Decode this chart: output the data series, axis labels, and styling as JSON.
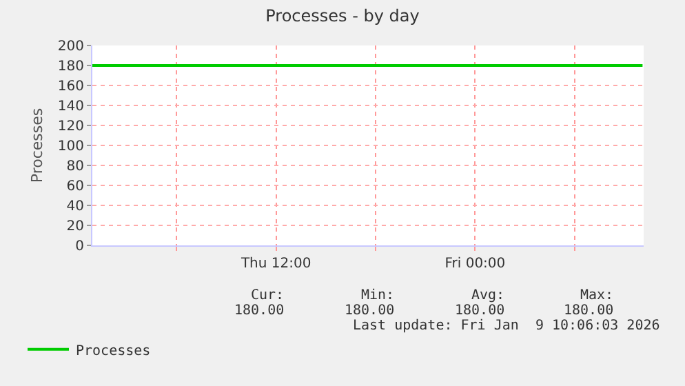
{
  "chart_data": {
    "type": "line",
    "title": "Processes - by day",
    "ylabel": "Processes",
    "x": [
      "2026-01-08T00:55",
      "2026-01-09T10:06"
    ],
    "series": [
      {
        "name": "Processes",
        "color": "#00cc00",
        "values": [
          180,
          180
        ]
      }
    ],
    "xlim": [
      "2026-01-08T00:55",
      "2026-01-09T10:10"
    ],
    "xticks": [
      {
        "value": "2026-01-08T06:00",
        "label": null
      },
      {
        "value": "2026-01-08T12:00",
        "label": "Thu 12:00"
      },
      {
        "value": "2026-01-08T18:00",
        "label": null
      },
      {
        "value": "2026-01-09T00:00",
        "label": "Fri 00:00"
      },
      {
        "value": "2026-01-09T06:00",
        "label": null
      }
    ],
    "ylim": [
      0,
      200
    ],
    "yticks": [
      0,
      20,
      40,
      60,
      80,
      100,
      120,
      140,
      160,
      180,
      200
    ],
    "grid": true,
    "legend": "bottom",
    "marker": "none",
    "line_style": "solid",
    "annotations": [
      "Cur:",
      "Min:",
      "Avg:",
      "Max:",
      "180.00",
      "180.00",
      "180.00",
      "180.00",
      "Last update: Fri Jan  9 10:06:03 2026"
    ]
  }
}
